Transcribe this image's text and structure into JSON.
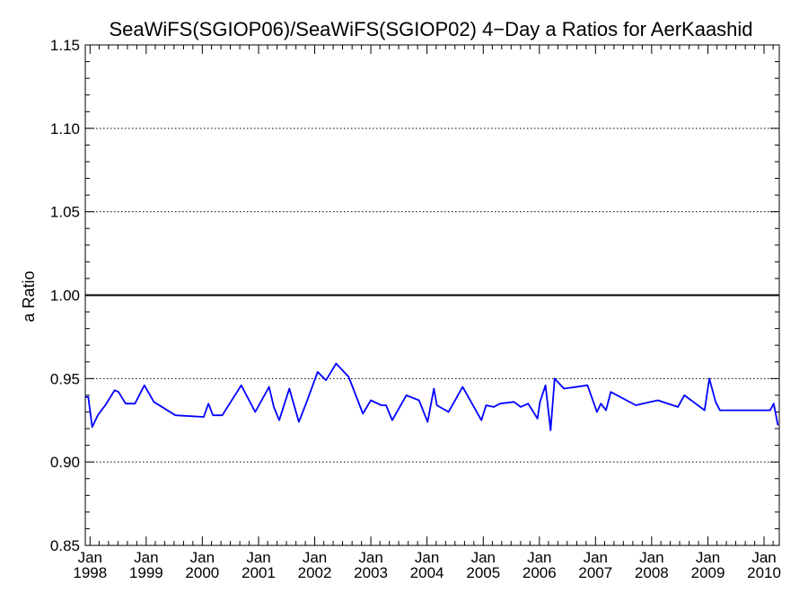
{
  "chart_data": {
    "type": "line",
    "title": "SeaWiFS(SGIOP06)/SeaWiFS(SGIOP02) 4−Day a Ratios for AerKaashid",
    "xlabel": "",
    "ylabel": "a Ratio",
    "ylim": [
      0.85,
      1.15
    ],
    "xlim": [
      "1997-12-01",
      "2010-04-10"
    ],
    "y_ticks": [
      "0.85",
      "0.90",
      "0.95",
      "1.00",
      "1.05",
      "1.10",
      "1.15"
    ],
    "x_ticks": [
      {
        "month": "Jan",
        "year": "1998",
        "date": "1998-01-01"
      },
      {
        "month": "Jan",
        "year": "1999",
        "date": "1999-01-01"
      },
      {
        "month": "Jan",
        "year": "2000",
        "date": "2000-01-01"
      },
      {
        "month": "Jan",
        "year": "2001",
        "date": "2001-01-01"
      },
      {
        "month": "Jan",
        "year": "2002",
        "date": "2002-01-01"
      },
      {
        "month": "Jan",
        "year": "2003",
        "date": "2003-01-01"
      },
      {
        "month": "Jan",
        "year": "2004",
        "date": "2004-01-01"
      },
      {
        "month": "Jan",
        "year": "2005",
        "date": "2005-01-01"
      },
      {
        "month": "Jan",
        "year": "2006",
        "date": "2006-01-01"
      },
      {
        "month": "Jan",
        "year": "2007",
        "date": "2007-01-01"
      },
      {
        "month": "Jan",
        "year": "2008",
        "date": "2008-01-01"
      },
      {
        "month": "Jan",
        "year": "2009",
        "date": "2009-01-01"
      },
      {
        "month": "Jan",
        "year": "2010",
        "date": "2010-01-01"
      }
    ],
    "grid": {
      "horizontal_dotted": [
        0.9,
        0.95,
        1.05,
        1.1
      ]
    },
    "reference_line": 1.0,
    "reference_color": "#000000",
    "series": [
      {
        "color": "#0000ff",
        "x": [
          "1997-12-01",
          "1997-12-20",
          "1998-01-15",
          "1998-02-20",
          "1998-04-10",
          "1998-06-10",
          "1998-07-05",
          "1998-08-20",
          "1998-10-20",
          "1998-12-20",
          "1999-02-20",
          "1999-07-10",
          "2000-01-10",
          "2000-02-10",
          "2000-03-10",
          "2000-05-10",
          "2000-09-10",
          "2000-12-10",
          "2001-03-10",
          "2001-04-10",
          "2001-05-15",
          "2001-07-20",
          "2001-09-20",
          "2001-11-10",
          "2002-01-20",
          "2002-03-15",
          "2002-05-20",
          "2002-08-10",
          "2002-11-10",
          "2003-01-01",
          "2003-03-10",
          "2003-04-10",
          "2003-05-20",
          "2003-08-20",
          "2003-11-10",
          "2004-01-05",
          "2004-02-15",
          "2004-03-05",
          "2004-05-20",
          "2004-08-20",
          "2004-12-20",
          "2005-01-20",
          "2005-03-10",
          "2005-04-20",
          "2005-07-20",
          "2005-09-01",
          "2005-10-20",
          "2005-12-20",
          "2006-01-05",
          "2006-02-10",
          "2006-03-15",
          "2006-04-10",
          "2006-06-10",
          "2006-11-10",
          "2007-01-10",
          "2007-02-05",
          "2007-03-10",
          "2007-04-10",
          "2007-09-20",
          "2008-02-10",
          "2008-06-20",
          "2008-08-01",
          "2008-12-10",
          "2009-01-10",
          "2009-02-20",
          "2009-03-20",
          "2009-12-10",
          "2010-02-10",
          "2010-03-05",
          "2010-04-01"
        ],
        "y": [
          0.939,
          0.939,
          0.921,
          0.928,
          0.934,
          0.943,
          0.942,
          0.935,
          0.935,
          0.946,
          0.936,
          0.928,
          0.927,
          0.935,
          0.928,
          0.928,
          0.946,
          0.93,
          0.945,
          0.933,
          0.925,
          0.944,
          0.924,
          0.936,
          0.954,
          0.949,
          0.959,
          0.951,
          0.929,
          0.937,
          0.934,
          0.934,
          0.925,
          0.94,
          0.937,
          0.924,
          0.944,
          0.934,
          0.93,
          0.945,
          0.925,
          0.934,
          0.933,
          0.935,
          0.936,
          0.933,
          0.935,
          0.926,
          0.936,
          0.946,
          0.919,
          0.95,
          0.944,
          0.946,
          0.93,
          0.935,
          0.931,
          0.942,
          0.934,
          0.937,
          0.933,
          0.94,
          0.931,
          0.95,
          0.936,
          0.931,
          0.931,
          0.931,
          0.935,
          0.922
        ]
      }
    ]
  }
}
